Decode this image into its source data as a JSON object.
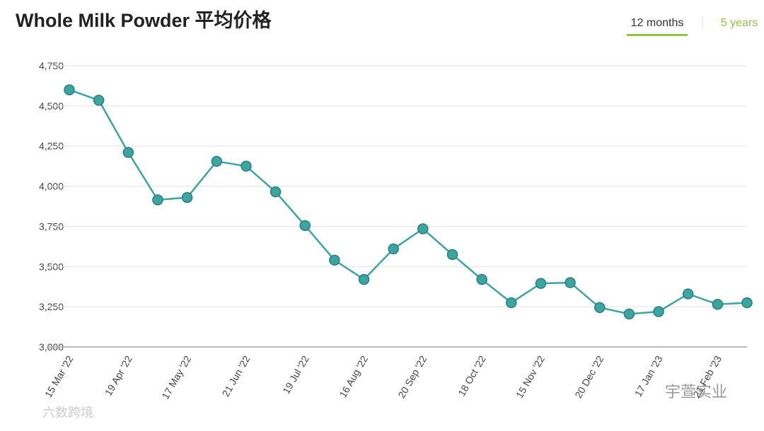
{
  "chart_data": {
    "type": "line",
    "title": "Whole Milk Powder 平均价格",
    "tabs": [
      "12 months",
      "5 years"
    ],
    "categories": [
      "15 Mar '22",
      null,
      "19 Apr '22",
      null,
      "17 May '22",
      null,
      "21 Jun '22",
      null,
      "19 Jul '22",
      null,
      "16 Aug '22",
      null,
      "20 Sep '22",
      null,
      "18 Oct '22",
      null,
      "15 Nov '22",
      null,
      "20 Dec '22",
      null,
      "17 Jan '23",
      null,
      "21 Feb '23",
      null
    ],
    "series": [
      {
        "name": "Whole Milk Powder",
        "color": "#3aa6a1",
        "values": [
          4600,
          4535,
          4210,
          3915,
          3930,
          4155,
          4125,
          3965,
          3755,
          3540,
          3420,
          3610,
          3735,
          3575,
          3420,
          3275,
          3395,
          3400,
          3245,
          3205,
          3220,
          3330,
          3265,
          3275
        ]
      }
    ],
    "ylim": [
      3000,
      4750
    ],
    "yticks": [
      {
        "value": 3000,
        "label": "3,000"
      },
      {
        "value": 3250,
        "label": "3,250"
      },
      {
        "value": 3500,
        "label": "3,500"
      },
      {
        "value": 3750,
        "label": "3,750"
      },
      {
        "value": 4000,
        "label": "4,000"
      },
      {
        "value": 4250,
        "label": "4,250"
      },
      {
        "value": 4500,
        "label": "4,500"
      },
      {
        "value": 4750,
        "label": "4,750"
      }
    ],
    "grid": true,
    "watermarks": [
      "六数跨境",
      "宇萱实业"
    ]
  }
}
